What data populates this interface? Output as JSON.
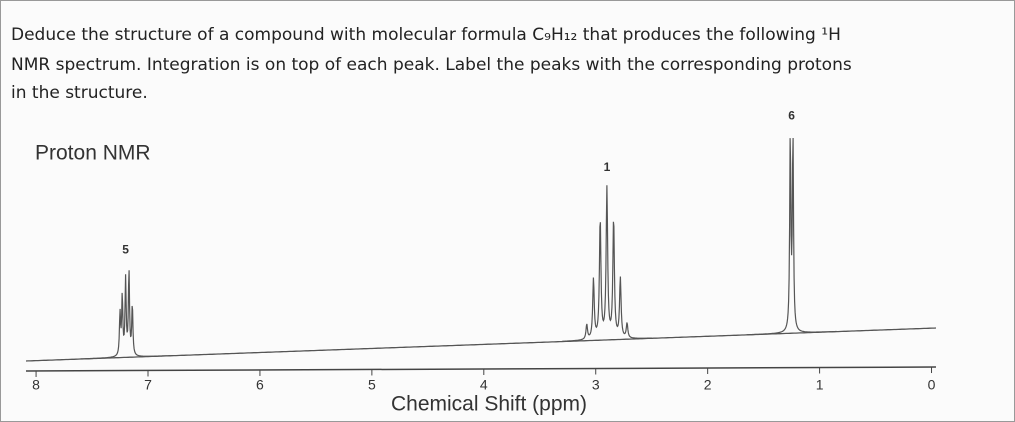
{
  "question": [
    "Deduce the structure of a compound with molecular formula C₉H₁₂ that produces the following ¹H",
    "NMR spectrum. Integration is on top of each peak. Label the peaks with the corresponding protons",
    "in the structure."
  ],
  "chart_data": {
    "type": "spectrum",
    "title": "Proton NMR",
    "x_label": "Chemical Shift (ppm)",
    "xlim": [
      8.09,
      -0.04
    ],
    "xticks": [
      8,
      7,
      6,
      5,
      4,
      3,
      2,
      1,
      0
    ],
    "peaks": [
      {
        "shift": 7.2,
        "integration": 5
      },
      {
        "shift": 2.9,
        "integration": 1
      },
      {
        "shift": 1.25,
        "integration": 6
      }
    ],
    "color": "#555555"
  }
}
